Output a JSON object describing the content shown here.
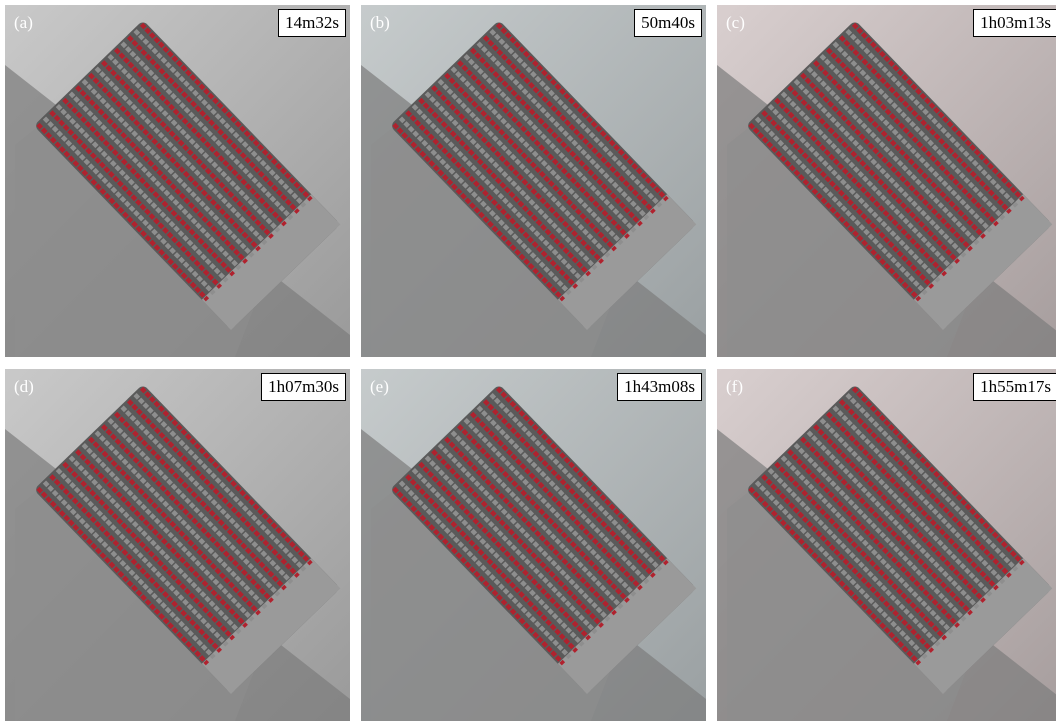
{
  "panels": [
    {
      "label": "(a)",
      "time": "14m32s"
    },
    {
      "label": "(b)",
      "time": "50m40s"
    },
    {
      "label": "(c)",
      "time": "1h03m13s"
    },
    {
      "label": "(d)",
      "time": "1h07m30s"
    },
    {
      "label": "(e)",
      "time": "1h43m08s"
    },
    {
      "label": "(f)",
      "time": "1h55m17s"
    }
  ]
}
